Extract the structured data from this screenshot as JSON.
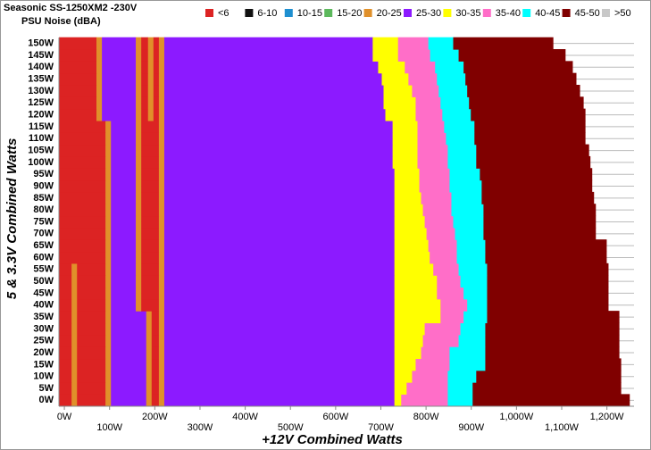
{
  "chart_data": {
    "type": "heatmap",
    "title": "Seasonic  SS-1250XM2 -230V",
    "subtitle": "PSU Noise (dBA)",
    "x_label": "+12V Combined Watts",
    "y_label": "5 & 3.3V Combined Watts",
    "legend": [
      {
        "name": "<6",
        "color": "#dc2323"
      },
      {
        "name": "6-10",
        "color": "#111111"
      },
      {
        "name": "10-15",
        "color": "#1e8fd0"
      },
      {
        "name": "15-20",
        "color": "#5cb85c"
      },
      {
        "name": "20-25",
        "color": "#e0902a"
      },
      {
        "name": "25-30",
        "color": "#8c1aff"
      },
      {
        "name": "30-35",
        "color": "#ffff00"
      },
      {
        "name": "35-40",
        "color": "#ff6ec8"
      },
      {
        "name": "40-45",
        "color": "#00ffff"
      },
      {
        "name": "45-50",
        "color": "#800000"
      },
      {
        "name": ">50",
        "color": "#c8c8c8"
      }
    ],
    "xlim": [
      -12,
      1260
    ],
    "ylim": [
      -2.5,
      152.5
    ],
    "grid": true,
    "xticks": [
      {
        "value": 0,
        "label": "0W"
      },
      {
        "value": 100,
        "label": "100W"
      },
      {
        "value": 200,
        "label": "200W"
      },
      {
        "value": 300,
        "label": "300W"
      },
      {
        "value": 400,
        "label": "400W"
      },
      {
        "value": 500,
        "label": "500W"
      },
      {
        "value": 600,
        "label": "600W"
      },
      {
        "value": 700,
        "label": "700W"
      },
      {
        "value": 800,
        "label": "800W"
      },
      {
        "value": 900,
        "label": "900W"
      },
      {
        "value": 1000,
        "label": "1,000W"
      },
      {
        "value": 1100,
        "label": "1,100W"
      },
      {
        "value": 1200,
        "label": "1,200W"
      }
    ],
    "yticks": [
      {
        "value": 0,
        "label": "0W"
      },
      {
        "value": 5,
        "label": "5W"
      },
      {
        "value": 10,
        "label": "10W"
      },
      {
        "value": 15,
        "label": "15W"
      },
      {
        "value": 20,
        "label": "20W"
      },
      {
        "value": 25,
        "label": "25W"
      },
      {
        "value": 30,
        "label": "30W"
      },
      {
        "value": 35,
        "label": "35W"
      },
      {
        "value": 40,
        "label": "40W"
      },
      {
        "value": 45,
        "label": "45W"
      },
      {
        "value": 50,
        "label": "50W"
      },
      {
        "value": 55,
        "label": "55W"
      },
      {
        "value": 60,
        "label": "60W"
      },
      {
        "value": 65,
        "label": "65W"
      },
      {
        "value": 70,
        "label": "70W"
      },
      {
        "value": 75,
        "label": "75W"
      },
      {
        "value": 80,
        "label": "80W"
      },
      {
        "value": 85,
        "label": "85W"
      },
      {
        "value": 90,
        "label": "90W"
      },
      {
        "value": 95,
        "label": "95W"
      },
      {
        "value": 100,
        "label": "100W"
      },
      {
        "value": 105,
        "label": "105W"
      },
      {
        "value": 110,
        "label": "110W"
      },
      {
        "value": 115,
        "label": "115W"
      },
      {
        "value": 120,
        "label": "120W"
      },
      {
        "value": 125,
        "label": "125W"
      },
      {
        "value": 130,
        "label": "130W"
      },
      {
        "value": 135,
        "label": "135W"
      },
      {
        "value": 140,
        "label": "140W"
      },
      {
        "value": 145,
        "label": "145W"
      },
      {
        "value": 150,
        "label": "150W"
      }
    ],
    "rows": [
      {
        "y": 0,
        "edges": [
          -12,
          16,
          28,
          91,
          103,
          181,
          193,
          209,
          221,
          730,
          745,
          848,
          903,
          1250
        ],
        "zones": [
          0,
          4,
          0,
          4,
          5,
          4,
          0,
          4,
          5,
          6,
          7,
          8,
          9
        ]
      },
      {
        "y": 5,
        "edges": [
          -12,
          16,
          28,
          91,
          103,
          181,
          193,
          209,
          221,
          730,
          757,
          848,
          903,
          1231
        ],
        "zones": [
          0,
          4,
          0,
          4,
          5,
          4,
          0,
          4,
          5,
          6,
          7,
          8,
          9
        ]
      },
      {
        "y": 10,
        "edges": [
          -12,
          16,
          28,
          91,
          103,
          181,
          193,
          209,
          221,
          730,
          769,
          848,
          911,
          1231
        ],
        "zones": [
          0,
          4,
          0,
          4,
          5,
          4,
          0,
          4,
          5,
          6,
          7,
          8,
          9
        ]
      },
      {
        "y": 15,
        "edges": [
          -12,
          16,
          28,
          91,
          103,
          181,
          193,
          209,
          221,
          730,
          777,
          852,
          931,
          1231
        ],
        "zones": [
          0,
          4,
          0,
          4,
          5,
          4,
          0,
          4,
          5,
          6,
          7,
          8,
          9
        ]
      },
      {
        "y": 20,
        "edges": [
          -12,
          16,
          28,
          91,
          103,
          181,
          193,
          209,
          221,
          730,
          789,
          852,
          931,
          1227
        ],
        "zones": [
          0,
          4,
          0,
          4,
          5,
          4,
          0,
          4,
          5,
          6,
          7,
          8,
          9
        ]
      },
      {
        "y": 25,
        "edges": [
          -12,
          16,
          28,
          91,
          103,
          181,
          193,
          209,
          221,
          730,
          793,
          872,
          931,
          1227
        ],
        "zones": [
          0,
          4,
          0,
          4,
          5,
          4,
          0,
          4,
          5,
          6,
          7,
          8,
          9
        ]
      },
      {
        "y": 30,
        "edges": [
          -12,
          16,
          28,
          91,
          103,
          181,
          193,
          209,
          221,
          730,
          797,
          876,
          931,
          1227
        ],
        "zones": [
          0,
          4,
          0,
          4,
          5,
          4,
          0,
          4,
          5,
          6,
          7,
          8,
          9
        ]
      },
      {
        "y": 35,
        "edges": [
          -12,
          16,
          28,
          91,
          103,
          181,
          193,
          209,
          221,
          730,
          832,
          883,
          935,
          1227
        ],
        "zones": [
          0,
          4,
          0,
          4,
          5,
          4,
          0,
          4,
          5,
          6,
          7,
          8,
          9
        ]
      },
      {
        "y": 40,
        "edges": [
          -12,
          16,
          28,
          91,
          103,
          158,
          170,
          209,
          221,
          730,
          832,
          891,
          935,
          1203
        ],
        "zones": [
          0,
          4,
          0,
          4,
          5,
          4,
          0,
          4,
          5,
          6,
          7,
          8,
          9
        ]
      },
      {
        "y": 45,
        "edges": [
          -12,
          16,
          28,
          91,
          103,
          158,
          170,
          209,
          221,
          730,
          824,
          883,
          935,
          1203
        ],
        "zones": [
          0,
          4,
          0,
          4,
          5,
          4,
          0,
          4,
          5,
          6,
          7,
          8,
          9
        ]
      },
      {
        "y": 50,
        "edges": [
          -12,
          16,
          28,
          91,
          103,
          158,
          170,
          209,
          221,
          730,
          824,
          876,
          935,
          1203
        ],
        "zones": [
          0,
          4,
          0,
          4,
          5,
          4,
          0,
          4,
          5,
          6,
          7,
          8,
          9
        ]
      },
      {
        "y": 55,
        "edges": [
          -12,
          16,
          28,
          91,
          103,
          158,
          170,
          209,
          221,
          730,
          816,
          872,
          935,
          1203
        ],
        "zones": [
          0,
          4,
          0,
          4,
          5,
          4,
          0,
          4,
          5,
          6,
          7,
          8,
          9
        ]
      },
      {
        "y": 60,
        "edges": [
          -12,
          91,
          103,
          158,
          170,
          209,
          221,
          730,
          808,
          868,
          931,
          1199
        ],
        "zones": [
          0,
          4,
          5,
          4,
          0,
          4,
          5,
          6,
          7,
          8,
          9
        ]
      },
      {
        "y": 65,
        "edges": [
          -12,
          91,
          103,
          158,
          170,
          209,
          221,
          730,
          805,
          868,
          931,
          1199
        ],
        "zones": [
          0,
          4,
          5,
          4,
          0,
          4,
          5,
          6,
          7,
          8,
          9
        ]
      },
      {
        "y": 70,
        "edges": [
          -12,
          91,
          103,
          158,
          170,
          209,
          221,
          730,
          801,
          864,
          927,
          1175
        ],
        "zones": [
          0,
          4,
          5,
          4,
          0,
          4,
          5,
          6,
          7,
          8,
          9
        ]
      },
      {
        "y": 75,
        "edges": [
          -12,
          91,
          103,
          158,
          170,
          209,
          221,
          730,
          797,
          860,
          927,
          1175
        ],
        "zones": [
          0,
          4,
          5,
          4,
          0,
          4,
          5,
          6,
          7,
          8,
          9
        ]
      },
      {
        "y": 80,
        "edges": [
          -12,
          91,
          103,
          158,
          170,
          209,
          221,
          730,
          793,
          856,
          927,
          1175
        ],
        "zones": [
          0,
          4,
          5,
          4,
          0,
          4,
          5,
          6,
          7,
          8,
          9
        ]
      },
      {
        "y": 85,
        "edges": [
          -12,
          91,
          103,
          158,
          170,
          209,
          221,
          730,
          789,
          856,
          923,
          1171
        ],
        "zones": [
          0,
          4,
          5,
          4,
          0,
          4,
          5,
          6,
          7,
          8,
          9
        ]
      },
      {
        "y": 90,
        "edges": [
          -12,
          91,
          103,
          158,
          170,
          209,
          221,
          730,
          785,
          852,
          923,
          1167
        ],
        "zones": [
          0,
          4,
          5,
          4,
          0,
          4,
          5,
          6,
          7,
          8,
          9
        ]
      },
      {
        "y": 95,
        "edges": [
          -12,
          91,
          103,
          158,
          170,
          209,
          221,
          730,
          785,
          852,
          919,
          1167
        ],
        "zones": [
          0,
          4,
          5,
          4,
          0,
          4,
          5,
          6,
          7,
          8,
          9
        ]
      },
      {
        "y": 100,
        "edges": [
          -12,
          91,
          103,
          158,
          170,
          209,
          221,
          726,
          781,
          848,
          911,
          1163
        ],
        "zones": [
          0,
          4,
          5,
          4,
          0,
          4,
          5,
          6,
          7,
          8,
          9
        ]
      },
      {
        "y": 105,
        "edges": [
          -12,
          91,
          103,
          158,
          170,
          209,
          221,
          726,
          781,
          848,
          911,
          1160
        ],
        "zones": [
          0,
          4,
          5,
          4,
          0,
          4,
          5,
          6,
          7,
          8,
          9
        ]
      },
      {
        "y": 110,
        "edges": [
          -12,
          91,
          103,
          158,
          170,
          209,
          221,
          726,
          781,
          844,
          907,
          1152
        ],
        "zones": [
          0,
          4,
          5,
          4,
          0,
          4,
          5,
          6,
          7,
          8,
          9
        ]
      },
      {
        "y": 115,
        "edges": [
          -12,
          91,
          103,
          158,
          170,
          209,
          221,
          726,
          781,
          840,
          907,
          1152
        ],
        "zones": [
          0,
          4,
          5,
          4,
          0,
          4,
          5,
          6,
          7,
          8,
          9
        ]
      },
      {
        "y": 120,
        "edges": [
          -12,
          71,
          83,
          158,
          170,
          185,
          197,
          209,
          221,
          710,
          777,
          836,
          899,
          1152
        ],
        "zones": [
          0,
          4,
          5,
          4,
          0,
          4,
          0,
          4,
          5,
          6,
          7,
          8,
          9
        ]
      },
      {
        "y": 125,
        "edges": [
          -12,
          71,
          83,
          158,
          170,
          185,
          197,
          209,
          221,
          706,
          777,
          832,
          895,
          1148
        ],
        "zones": [
          0,
          4,
          5,
          4,
          0,
          4,
          0,
          4,
          5,
          6,
          7,
          8,
          9
        ]
      },
      {
        "y": 130,
        "edges": [
          -12,
          71,
          83,
          158,
          170,
          185,
          197,
          209,
          221,
          706,
          769,
          828,
          891,
          1140
        ],
        "zones": [
          0,
          4,
          5,
          4,
          0,
          4,
          0,
          4,
          5,
          6,
          7,
          8,
          9
        ]
      },
      {
        "y": 135,
        "edges": [
          -12,
          71,
          83,
          158,
          170,
          185,
          197,
          209,
          221,
          702,
          761,
          824,
          887,
          1132
        ],
        "zones": [
          0,
          4,
          5,
          4,
          0,
          4,
          0,
          4,
          5,
          6,
          7,
          8,
          9
        ]
      },
      {
        "y": 140,
        "edges": [
          -12,
          71,
          83,
          158,
          170,
          185,
          197,
          209,
          221,
          694,
          753,
          820,
          883,
          1124
        ],
        "zones": [
          0,
          4,
          5,
          4,
          0,
          4,
          0,
          4,
          5,
          6,
          7,
          8,
          9
        ]
      },
      {
        "y": 145,
        "edges": [
          -12,
          71,
          83,
          158,
          170,
          185,
          197,
          209,
          221,
          682,
          738,
          809,
          872,
          1108
        ],
        "zones": [
          0,
          4,
          5,
          4,
          0,
          4,
          0,
          4,
          5,
          6,
          7,
          8,
          9
        ]
      },
      {
        "y": 150,
        "edges": [
          -12,
          71,
          83,
          158,
          170,
          185,
          197,
          209,
          221,
          682,
          738,
          805,
          860,
          1081
        ],
        "zones": [
          0,
          4,
          5,
          4,
          0,
          4,
          0,
          4,
          5,
          6,
          7,
          8,
          9
        ]
      }
    ]
  }
}
